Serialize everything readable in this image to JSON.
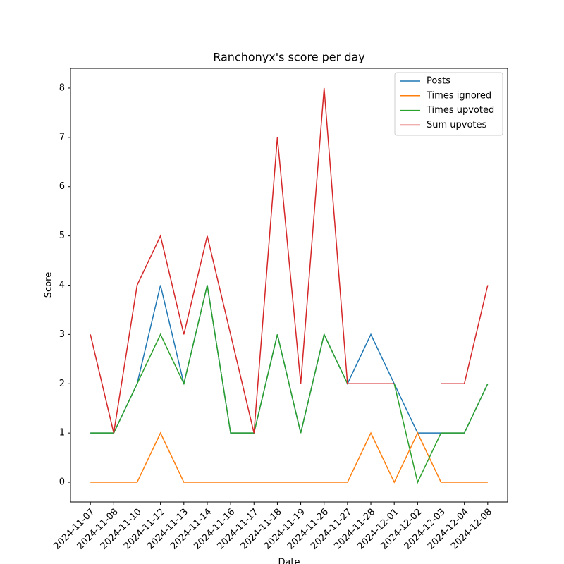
{
  "chart_data": {
    "type": "line",
    "title": "Ranchonyx's score per day",
    "x_label": "Date",
    "y_label": "Score",
    "categories": [
      "2024-11-07",
      "2024-11-08",
      "2024-11-10",
      "2024-11-12",
      "2024-11-13",
      "2024-11-14",
      "2024-11-16",
      "2024-11-17",
      "2024-11-18",
      "2024-11-19",
      "2024-11-26",
      "2024-11-27",
      "2024-11-28",
      "2024-12-01",
      "2024-12-02",
      "2024-12-03",
      "2024-12-04",
      "2024-12-08"
    ],
    "series": [
      {
        "name": "Posts",
        "color": "#1f77b4",
        "values": [
          1,
          1,
          2,
          4,
          2,
          4,
          1,
          1,
          3,
          1,
          3,
          2,
          3,
          2,
          1,
          1,
          1,
          2
        ]
      },
      {
        "name": "Times ignored",
        "color": "#ff7f0e",
        "values": [
          0,
          0,
          0,
          1,
          0,
          0,
          0,
          0,
          0,
          0,
          0,
          0,
          1,
          0,
          1,
          0,
          0,
          0
        ]
      },
      {
        "name": "Times upvoted",
        "color": "#2ca02c",
        "values": [
          1,
          1,
          2,
          3,
          2,
          4,
          1,
          1,
          3,
          1,
          3,
          2,
          2,
          2,
          0,
          1,
          1,
          2
        ]
      },
      {
        "name": "Sum upvotes",
        "color": "#d62728",
        "values": [
          3,
          1,
          4,
          5,
          3,
          5,
          3,
          1,
          7,
          2,
          8,
          2,
          2,
          2,
          null,
          2,
          2,
          4
        ]
      }
    ],
    "ylim": [
      -0.4,
      8.4
    ],
    "yticks": [
      0,
      1,
      2,
      3,
      4,
      5,
      6,
      7,
      8
    ],
    "legend": "upper right"
  }
}
